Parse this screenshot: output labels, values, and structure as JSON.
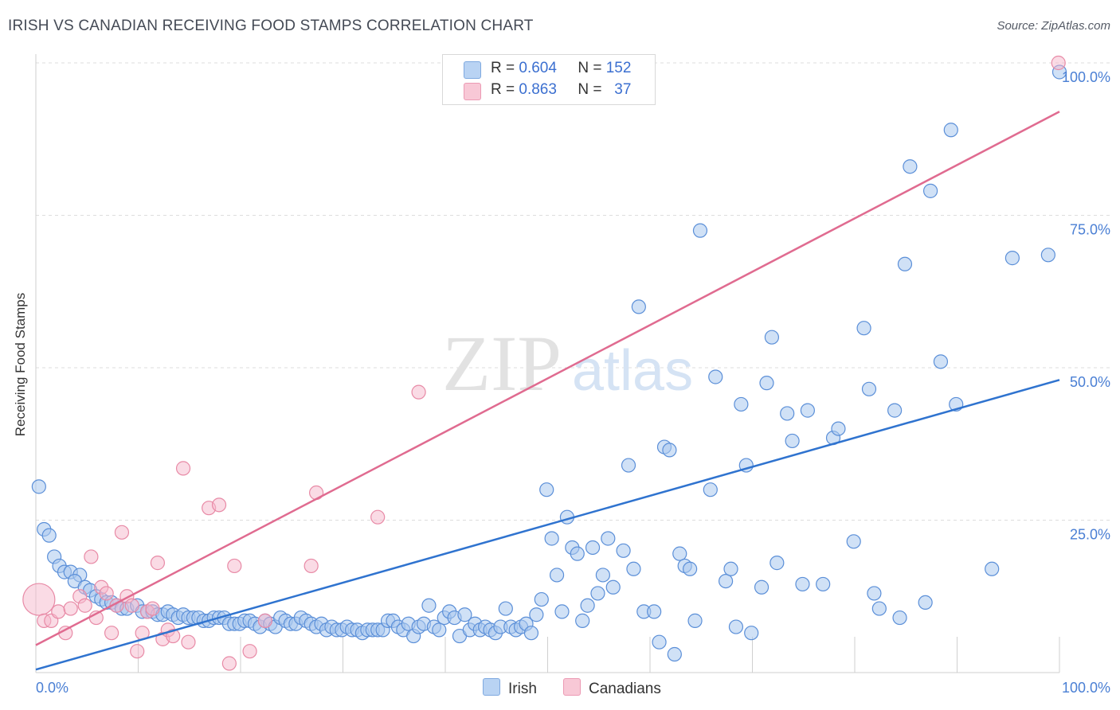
{
  "title": "IRISH VS CANADIAN RECEIVING FOOD STAMPS CORRELATION CHART",
  "source": "Source: ZipAtlas.com",
  "watermark": {
    "zip": "ZIP",
    "atlas": "atlas"
  },
  "legend": [
    {
      "r_label": "R =",
      "r_value": "0.604",
      "n_label": "N =",
      "n_value": "152"
    },
    {
      "r_label": "R =",
      "r_value": "0.863",
      "n_label": "N =",
      "n_value": "37"
    }
  ],
  "bottom_legend": {
    "irish": "Irish",
    "canadians": "Canadians"
  },
  "colors": {
    "irish_fill": "#aac8ef",
    "irish_stroke": "#5b8fd8",
    "irish_line": "#2f73cf",
    "can_fill": "#f5b8cb",
    "can_stroke": "#e88aa6",
    "can_line": "#e06b90",
    "tick_text": "#4a7fd4",
    "grid": "#dddddd"
  },
  "chart_data": {
    "type": "scatter",
    "title": "IRISH VS CANADIAN RECEIVING FOOD STAMPS CORRELATION CHART",
    "xlabel": "",
    "ylabel": "Receiving Food Stamps",
    "xlim": [
      0,
      100
    ],
    "ylim": [
      0,
      100
    ],
    "x_tick_labels": [
      "0.0%",
      "100.0%"
    ],
    "y_ticks": [
      25,
      50,
      75,
      100
    ],
    "y_tick_labels": [
      "25.0%",
      "50.0%",
      "75.0%",
      "100.0%"
    ],
    "series": [
      {
        "name": "Irish",
        "R": 0.604,
        "N": 152,
        "trend": {
          "x": [
            0,
            100
          ],
          "y": [
            0.5,
            48
          ]
        },
        "points": [
          [
            0.3,
            30.5
          ],
          [
            0.8,
            23.5
          ],
          [
            1.3,
            22.5
          ],
          [
            1.8,
            19
          ],
          [
            2.3,
            17.5
          ],
          [
            2.8,
            16.5
          ],
          [
            3.4,
            16.5
          ],
          [
            4.3,
            16
          ],
          [
            3.8,
            15
          ],
          [
            4.8,
            14
          ],
          [
            5.3,
            13.5
          ],
          [
            5.9,
            12.5
          ],
          [
            6.4,
            12
          ],
          [
            6.9,
            11.5
          ],
          [
            7.4,
            11.5
          ],
          [
            7.9,
            11
          ],
          [
            8.4,
            10.5
          ],
          [
            8.9,
            10.5
          ],
          [
            9.9,
            11
          ],
          [
            10.4,
            10
          ],
          [
            10.9,
            10
          ],
          [
            11.4,
            10
          ],
          [
            11.9,
            9.5
          ],
          [
            12.4,
            9.5
          ],
          [
            12.9,
            10
          ],
          [
            13.4,
            9.5
          ],
          [
            13.9,
            9
          ],
          [
            14.4,
            9.5
          ],
          [
            14.9,
            9
          ],
          [
            15.4,
            9
          ],
          [
            15.9,
            9
          ],
          [
            16.4,
            8.5
          ],
          [
            16.9,
            8.5
          ],
          [
            17.4,
            9
          ],
          [
            17.9,
            9
          ],
          [
            18.4,
            9
          ],
          [
            18.9,
            8
          ],
          [
            19.4,
            8
          ],
          [
            19.9,
            8
          ],
          [
            20.4,
            8.5
          ],
          [
            20.9,
            8.5
          ],
          [
            21.4,
            8
          ],
          [
            21.9,
            7.5
          ],
          [
            22.4,
            8.5
          ],
          [
            22.9,
            8
          ],
          [
            23.4,
            7.5
          ],
          [
            23.9,
            9
          ],
          [
            24.4,
            8.5
          ],
          [
            24.9,
            8
          ],
          [
            25.4,
            8
          ],
          [
            25.9,
            9
          ],
          [
            26.4,
            8.5
          ],
          [
            26.9,
            8
          ],
          [
            27.4,
            7.5
          ],
          [
            27.9,
            8
          ],
          [
            28.4,
            7
          ],
          [
            28.9,
            7.5
          ],
          [
            29.4,
            7
          ],
          [
            29.9,
            7
          ],
          [
            30.4,
            7.5
          ],
          [
            30.9,
            7
          ],
          [
            31.4,
            7
          ],
          [
            31.9,
            6.5
          ],
          [
            32.4,
            7
          ],
          [
            32.9,
            7
          ],
          [
            33.4,
            7
          ],
          [
            33.9,
            7
          ],
          [
            34.4,
            8.5
          ],
          [
            34.9,
            8.5
          ],
          [
            35.4,
            7.5
          ],
          [
            35.9,
            7
          ],
          [
            36.4,
            8
          ],
          [
            36.9,
            6
          ],
          [
            37.4,
            7.5
          ],
          [
            37.9,
            8
          ],
          [
            38.4,
            11
          ],
          [
            38.9,
            7.5
          ],
          [
            39.4,
            7
          ],
          [
            39.9,
            9
          ],
          [
            40.4,
            10
          ],
          [
            40.9,
            9
          ],
          [
            41.4,
            6
          ],
          [
            41.9,
            9.5
          ],
          [
            42.4,
            7
          ],
          [
            42.9,
            8
          ],
          [
            43.4,
            7
          ],
          [
            43.9,
            7.5
          ],
          [
            44.4,
            7
          ],
          [
            44.9,
            6.5
          ],
          [
            45.4,
            7.5
          ],
          [
            45.9,
            10.5
          ],
          [
            46.4,
            7.5
          ],
          [
            46.9,
            7
          ],
          [
            47.4,
            7.5
          ],
          [
            47.9,
            8
          ],
          [
            48.4,
            6.5
          ],
          [
            48.9,
            9.5
          ],
          [
            49.4,
            12
          ],
          [
            49.9,
            30
          ],
          [
            50.4,
            22
          ],
          [
            50.9,
            16
          ],
          [
            51.4,
            10
          ],
          [
            51.9,
            25.5
          ],
          [
            52.4,
            20.5
          ],
          [
            52.9,
            19.5
          ],
          [
            53.4,
            8.5
          ],
          [
            53.9,
            11
          ],
          [
            54.4,
            20.5
          ],
          [
            54.9,
            13
          ],
          [
            55.4,
            16
          ],
          [
            55.9,
            22
          ],
          [
            56.4,
            14
          ],
          [
            57.4,
            20
          ],
          [
            57.9,
            34
          ],
          [
            58.4,
            17
          ],
          [
            58.9,
            60
          ],
          [
            59.4,
            10
          ],
          [
            60.4,
            10
          ],
          [
            60.9,
            5
          ],
          [
            61.4,
            37
          ],
          [
            62.4,
            3
          ],
          [
            61.9,
            36.5
          ],
          [
            62.9,
            19.5
          ],
          [
            63.4,
            17.5
          ],
          [
            63.9,
            17
          ],
          [
            64.4,
            8.5
          ],
          [
            64.9,
            72.5
          ],
          [
            65.9,
            30
          ],
          [
            66.4,
            48.5
          ],
          [
            67.4,
            15
          ],
          [
            67.9,
            17
          ],
          [
            68.4,
            7.5
          ],
          [
            68.9,
            44
          ],
          [
            69.4,
            34
          ],
          [
            69.9,
            6.5
          ],
          [
            70.9,
            14
          ],
          [
            71.4,
            47.5
          ],
          [
            71.9,
            55
          ],
          [
            72.4,
            18
          ],
          [
            73.4,
            42.5
          ],
          [
            73.9,
            38
          ],
          [
            74.9,
            14.5
          ],
          [
            75.4,
            43
          ],
          [
            76.9,
            14.5
          ],
          [
            77.9,
            38.5
          ],
          [
            78.4,
            40
          ],
          [
            79.9,
            21.5
          ],
          [
            80.9,
            56.5
          ],
          [
            81.4,
            46.5
          ],
          [
            81.9,
            13
          ],
          [
            82.4,
            10.5
          ],
          [
            83.9,
            43
          ],
          [
            84.4,
            9
          ],
          [
            84.9,
            67
          ],
          [
            85.4,
            83
          ],
          [
            86.9,
            11.5
          ],
          [
            87.4,
            79
          ],
          [
            88.4,
            51
          ],
          [
            89.4,
            89
          ],
          [
            89.9,
            44
          ],
          [
            93.4,
            17
          ],
          [
            95.4,
            68
          ],
          [
            98.9,
            68.5
          ],
          [
            100,
            98.5
          ]
        ]
      },
      {
        "name": "Canadians",
        "R": 0.863,
        "N": 37,
        "trend": {
          "x": [
            0,
            100
          ],
          "y": [
            4.5,
            92
          ]
        },
        "points": [
          [
            0.3,
            12
          ],
          [
            0.8,
            8.5
          ],
          [
            1.5,
            8.5
          ],
          [
            2.2,
            10
          ],
          [
            2.9,
            6.5
          ],
          [
            3.4,
            10.5
          ],
          [
            4.3,
            12.5
          ],
          [
            4.8,
            11
          ],
          [
            5.4,
            19
          ],
          [
            5.9,
            9
          ],
          [
            6.4,
            14
          ],
          [
            6.9,
            13
          ],
          [
            7.4,
            6.5
          ],
          [
            7.9,
            11
          ],
          [
            8.4,
            23
          ],
          [
            8.9,
            12.5
          ],
          [
            9.4,
            11
          ],
          [
            9.9,
            3.5
          ],
          [
            10.4,
            6.5
          ],
          [
            10.9,
            10
          ],
          [
            11.4,
            10.5
          ],
          [
            11.9,
            18
          ],
          [
            12.4,
            5.5
          ],
          [
            12.9,
            7
          ],
          [
            13.4,
            6
          ],
          [
            14.4,
            33.5
          ],
          [
            14.9,
            5
          ],
          [
            16.9,
            27
          ],
          [
            17.9,
            27.5
          ],
          [
            18.9,
            1.5
          ],
          [
            19.4,
            17.5
          ],
          [
            20.9,
            3.5
          ],
          [
            22.4,
            8.5
          ],
          [
            26.9,
            17.5
          ],
          [
            27.4,
            29.5
          ],
          [
            33.4,
            25.5
          ],
          [
            37.4,
            46
          ],
          [
            99.9,
            100
          ]
        ]
      }
    ]
  }
}
